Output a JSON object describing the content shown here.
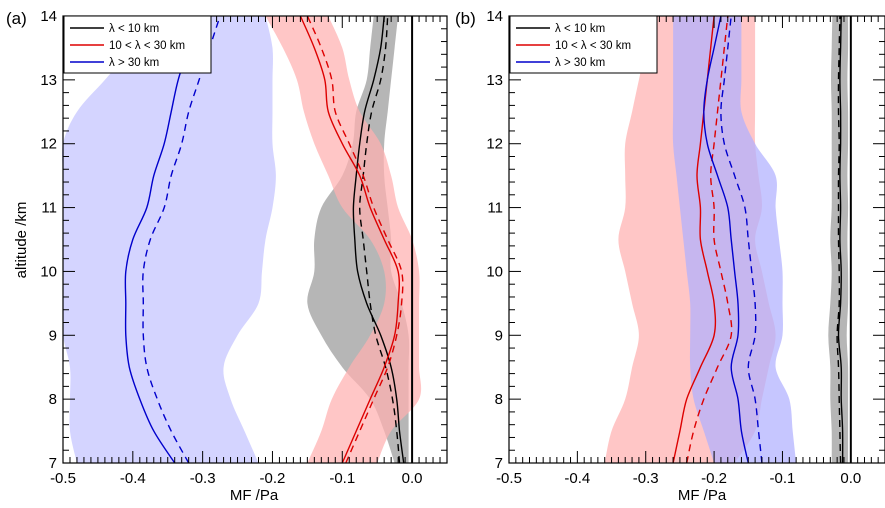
{
  "chart_data": [
    {
      "panel_label": "(a)",
      "type": "line",
      "xlabel": "MF /Pa",
      "ylabel": "altitude /km",
      "xlim": [
        -0.5,
        0.05
      ],
      "ylim": [
        7,
        14
      ],
      "x_ticks": [
        "-0.5",
        "-0.4",
        "-0.3",
        "-0.2",
        "-0.1",
        "0.0"
      ],
      "y_ticks": [
        "7",
        "8",
        "9",
        "10",
        "11",
        "12",
        "13",
        "14"
      ],
      "legend_position": "top-left",
      "series": [
        {
          "name": "λ < 10 km",
          "color": "#000000",
          "band_color": "#9a9a9a",
          "altitude": [
            7,
            7.5,
            8,
            8.5,
            9,
            9.5,
            10,
            10.5,
            11,
            11.5,
            12,
            12.5,
            13,
            13.5,
            14
          ],
          "solid": [
            -0.012,
            -0.018,
            -0.022,
            -0.03,
            -0.045,
            -0.065,
            -0.078,
            -0.082,
            -0.084,
            -0.08,
            -0.075,
            -0.068,
            -0.055,
            -0.045,
            -0.04
          ],
          "dashed": [
            -0.018,
            -0.022,
            -0.028,
            -0.038,
            -0.052,
            -0.06,
            -0.065,
            -0.07,
            -0.075,
            -0.07,
            -0.065,
            -0.058,
            -0.045,
            -0.038,
            -0.035
          ],
          "band_low": [
            -0.025,
            -0.04,
            -0.06,
            -0.1,
            -0.13,
            -0.15,
            -0.14,
            -0.14,
            -0.13,
            -0.1,
            -0.085,
            -0.08,
            -0.065,
            -0.06,
            -0.055
          ],
          "band_high": [
            -0.005,
            -0.005,
            -0.005,
            -0.005,
            -0.005,
            -0.015,
            -0.03,
            -0.03,
            -0.035,
            -0.04,
            -0.04,
            -0.035,
            -0.03,
            -0.025,
            -0.02
          ]
        },
        {
          "name": "10 < λ < 30 km",
          "color": "#dd0000",
          "band_color": "#ffb0b0",
          "altitude": [
            7,
            7.5,
            8,
            8.5,
            9,
            9.5,
            10,
            10.5,
            11,
            11.5,
            12,
            12.5,
            13,
            13.5,
            14
          ],
          "solid": [
            -0.1,
            -0.08,
            -0.06,
            -0.04,
            -0.025,
            -0.02,
            -0.02,
            -0.04,
            -0.06,
            -0.075,
            -0.1,
            -0.12,
            -0.125,
            -0.14,
            -0.16
          ],
          "dashed": [
            -0.095,
            -0.075,
            -0.055,
            -0.035,
            -0.022,
            -0.015,
            -0.015,
            -0.035,
            -0.055,
            -0.07,
            -0.09,
            -0.11,
            -0.115,
            -0.13,
            -0.15
          ],
          "band_low": [
            -0.15,
            -0.13,
            -0.115,
            -0.09,
            -0.06,
            -0.04,
            -0.04,
            -0.06,
            -0.1,
            -0.12,
            -0.14,
            -0.155,
            -0.165,
            -0.185,
            -0.21
          ],
          "band_high": [
            -0.05,
            -0.03,
            0.01,
            0.01,
            0.01,
            0.01,
            0.01,
            0.0,
            -0.02,
            -0.03,
            -0.045,
            -0.075,
            -0.09,
            -0.1,
            -0.12
          ]
        },
        {
          "name": "λ > 30 km",
          "color": "#0000cc",
          "band_color": "#c4c4ff",
          "altitude": [
            7,
            7.5,
            8,
            8.5,
            9,
            9.5,
            10,
            10.5,
            11,
            11.5,
            12,
            12.5,
            13,
            13.5,
            14
          ],
          "solid": [
            -0.34,
            -0.37,
            -0.39,
            -0.405,
            -0.41,
            -0.41,
            -0.41,
            -0.4,
            -0.38,
            -0.37,
            -0.355,
            -0.345,
            -0.335,
            -0.32,
            -0.305
          ],
          "dashed": [
            -0.32,
            -0.345,
            -0.365,
            -0.38,
            -0.385,
            -0.385,
            -0.385,
            -0.375,
            -0.355,
            -0.345,
            -0.33,
            -0.32,
            -0.305,
            -0.29,
            -0.275
          ],
          "band_low": [
            -0.48,
            -0.49,
            -0.49,
            -0.49,
            -0.5,
            -0.5,
            -0.5,
            -0.5,
            -0.5,
            -0.5,
            -0.5,
            -0.48,
            -0.44,
            -0.4,
            -0.36
          ],
          "band_high": [
            -0.22,
            -0.24,
            -0.26,
            -0.27,
            -0.25,
            -0.22,
            -0.215,
            -0.21,
            -0.2,
            -0.195,
            -0.2,
            -0.2,
            -0.2,
            -0.2,
            -0.21
          ]
        }
      ]
    },
    {
      "panel_label": "(b)",
      "type": "line",
      "xlabel": "MF /Pa",
      "ylabel": "",
      "xlim": [
        -0.5,
        0.05
      ],
      "ylim": [
        7,
        14
      ],
      "x_ticks": [
        "-0.5",
        "-0.4",
        "-0.3",
        "-0.2",
        "-0.1",
        "0.0"
      ],
      "y_ticks": [
        "7",
        "8",
        "9",
        "10",
        "11",
        "12",
        "13",
        "14"
      ],
      "legend_position": "top-left",
      "series": [
        {
          "name": "λ < 10 km",
          "color": "#000000",
          "band_color": "#9a9a9a",
          "altitude": [
            7,
            7.5,
            8,
            8.5,
            9,
            9.5,
            10,
            10.5,
            11,
            11.5,
            12,
            12.5,
            13,
            13.5,
            14
          ],
          "solid": [
            -0.012,
            -0.012,
            -0.014,
            -0.014,
            -0.018,
            -0.015,
            -0.014,
            -0.016,
            -0.015,
            -0.016,
            -0.015,
            -0.015,
            -0.016,
            -0.015,
            -0.014
          ],
          "dashed": [
            -0.015,
            -0.016,
            -0.017,
            -0.018,
            -0.02,
            -0.017,
            -0.017,
            -0.018,
            -0.018,
            -0.018,
            -0.017,
            -0.018,
            -0.018,
            -0.017,
            -0.016
          ],
          "band_low": [
            -0.028,
            -0.028,
            -0.03,
            -0.03,
            -0.033,
            -0.03,
            -0.028,
            -0.03,
            -0.028,
            -0.028,
            -0.028,
            -0.028,
            -0.029,
            -0.028,
            -0.027
          ],
          "band_high": [
            -0.004,
            -0.004,
            -0.004,
            -0.004,
            -0.006,
            -0.004,
            -0.004,
            -0.005,
            -0.004,
            -0.005,
            -0.004,
            -0.004,
            -0.005,
            -0.004,
            -0.004
          ]
        },
        {
          "name": "10 < λ < 30 km",
          "color": "#dd0000",
          "band_color": "#ffb0b0",
          "altitude": [
            7,
            7.5,
            8,
            8.5,
            9,
            9.5,
            10,
            10.5,
            11,
            11.5,
            12,
            12.5,
            13,
            13.5,
            14
          ],
          "solid": [
            -0.26,
            -0.25,
            -0.24,
            -0.22,
            -0.2,
            -0.2,
            -0.21,
            -0.22,
            -0.22,
            -0.225,
            -0.22,
            -0.215,
            -0.21,
            -0.205,
            -0.2
          ],
          "dashed": [
            -0.24,
            -0.23,
            -0.215,
            -0.195,
            -0.175,
            -0.18,
            -0.19,
            -0.2,
            -0.2,
            -0.205,
            -0.2,
            -0.195,
            -0.19,
            -0.185,
            -0.18
          ],
          "band_low": [
            -0.36,
            -0.35,
            -0.33,
            -0.32,
            -0.31,
            -0.32,
            -0.33,
            -0.34,
            -0.33,
            -0.33,
            -0.33,
            -0.32,
            -0.31,
            -0.3,
            -0.29
          ],
          "band_high": [
            -0.17,
            -0.14,
            -0.13,
            -0.12,
            -0.11,
            -0.12,
            -0.13,
            -0.14,
            -0.13,
            -0.135,
            -0.14,
            -0.14,
            -0.14,
            -0.14,
            -0.14
          ]
        },
        {
          "name": "λ > 30 km",
          "color": "#0000cc",
          "band_color": "#b0b0ff",
          "altitude": [
            7,
            7.5,
            8,
            8.5,
            9,
            9.5,
            10,
            10.5,
            11,
            11.5,
            12,
            12.5,
            13,
            13.5,
            14
          ],
          "solid": [
            -0.15,
            -0.16,
            -0.165,
            -0.175,
            -0.165,
            -0.165,
            -0.17,
            -0.175,
            -0.18,
            -0.195,
            -0.21,
            -0.215,
            -0.21,
            -0.2,
            -0.19
          ],
          "dashed": [
            -0.13,
            -0.135,
            -0.14,
            -0.15,
            -0.14,
            -0.14,
            -0.145,
            -0.15,
            -0.155,
            -0.17,
            -0.185,
            -0.19,
            -0.185,
            -0.18,
            -0.175
          ],
          "band_low": [
            -0.2,
            -0.215,
            -0.23,
            -0.235,
            -0.235,
            -0.235,
            -0.24,
            -0.245,
            -0.25,
            -0.255,
            -0.26,
            -0.26,
            -0.26,
            -0.26,
            -0.26
          ],
          "band_high": [
            -0.08,
            -0.085,
            -0.09,
            -0.11,
            -0.1,
            -0.1,
            -0.1,
            -0.105,
            -0.11,
            -0.11,
            -0.14,
            -0.16,
            -0.16,
            -0.16,
            -0.16
          ]
        }
      ]
    }
  ]
}
